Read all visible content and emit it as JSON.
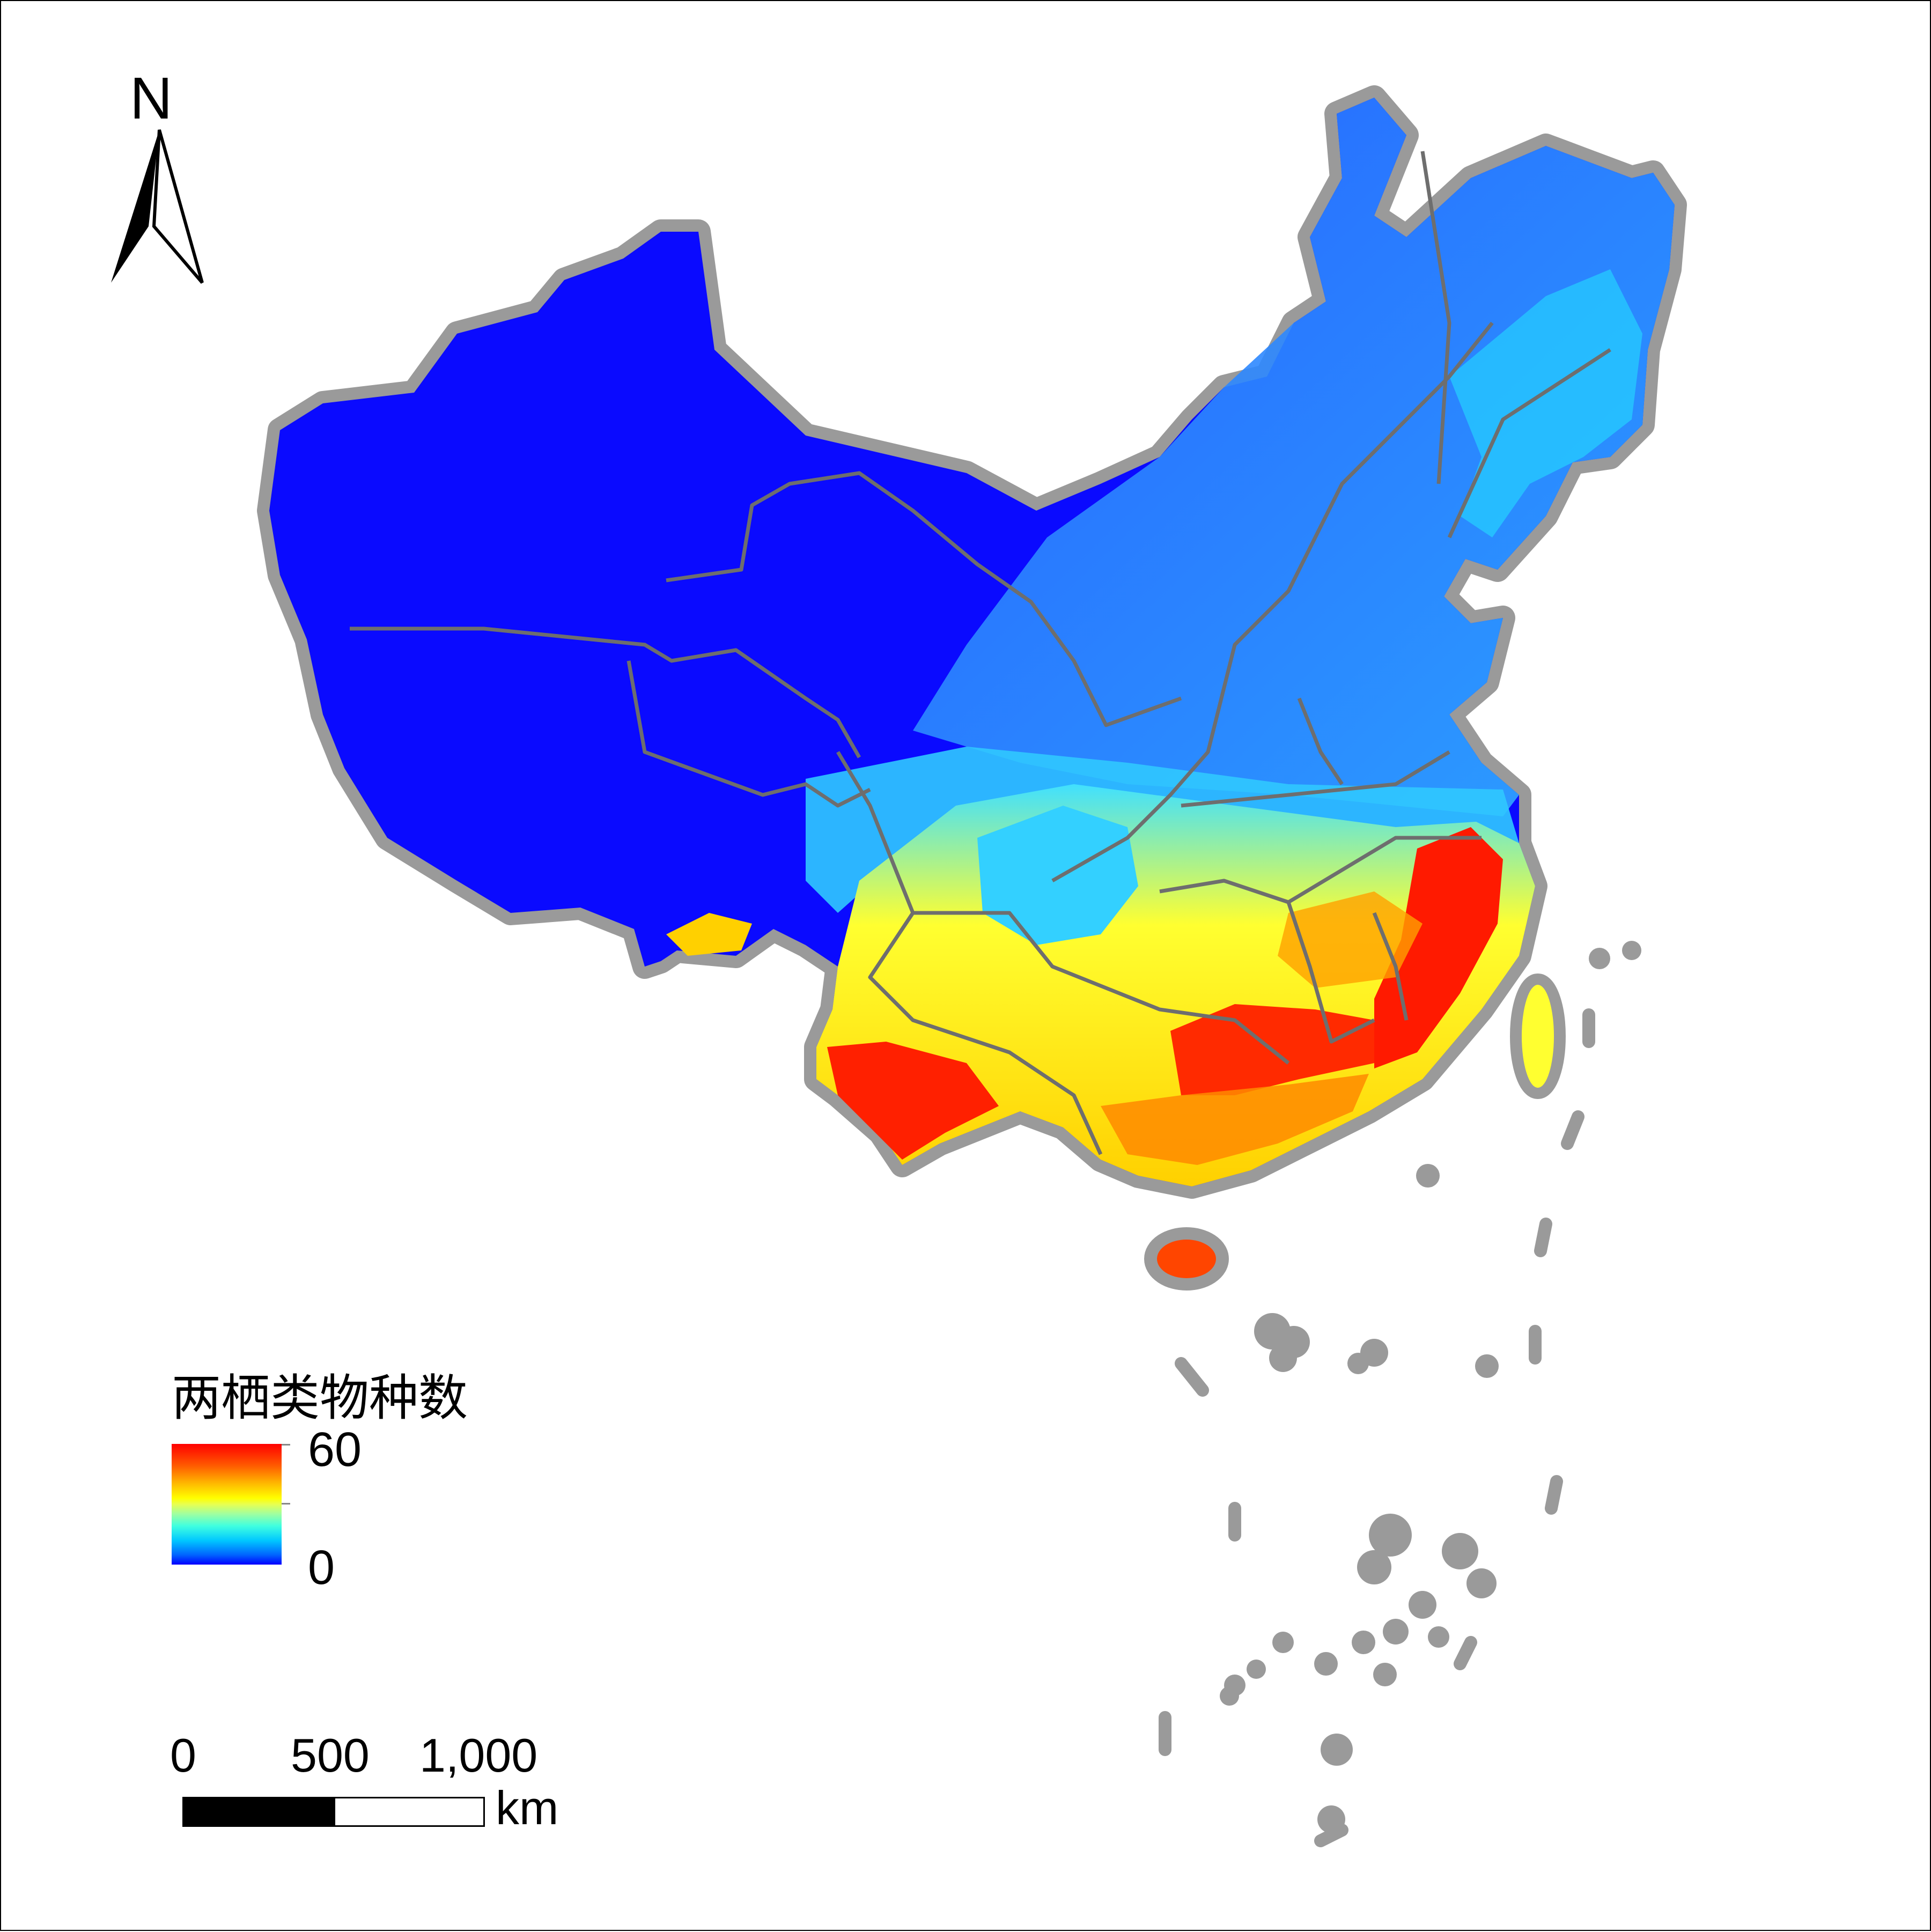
{
  "map": {
    "north_label": "N",
    "legend": {
      "title": "两栖类物种数",
      "max_label": "60",
      "min_label": "0",
      "colors": [
        "#ff0000",
        "#ffb400",
        "#ffff00",
        "#40ffe0",
        "#0064ff",
        "#0000ff"
      ]
    },
    "scale_bar": {
      "labels": [
        "0",
        "500",
        "1,000"
      ],
      "unit": "km"
    },
    "boundary_color": "#9a9a9a",
    "province_line_color": "#6e6e6e"
  }
}
